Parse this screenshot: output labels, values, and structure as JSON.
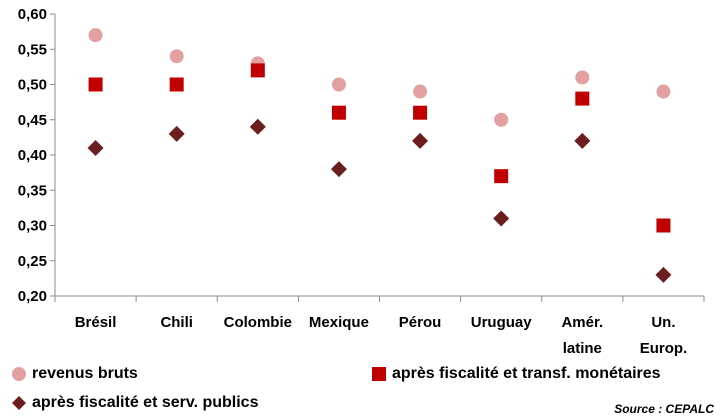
{
  "chart_data": {
    "type": "scatter",
    "categories": [
      [
        "Brésil"
      ],
      [
        "Chili"
      ],
      [
        "Colombie"
      ],
      [
        "Mexique"
      ],
      [
        "Pérou"
      ],
      [
        "Uruguay"
      ],
      [
        "Amér.",
        "latine"
      ],
      [
        "Un.",
        "Europ."
      ]
    ],
    "series": [
      {
        "name": "revenus bruts",
        "marker": "circle",
        "color": "#E3A0A0",
        "values": [
          0.57,
          0.54,
          0.53,
          0.5,
          0.49,
          0.45,
          0.51,
          0.49
        ]
      },
      {
        "name": "après fiscalité et transf. monétaires",
        "marker": "square",
        "color": "#C00000",
        "values": [
          0.5,
          0.5,
          0.52,
          0.46,
          0.46,
          0.37,
          0.48,
          0.3
        ]
      },
      {
        "name": "après fiscalité et serv. publics",
        "marker": "diamond",
        "color": "#6B1E1E",
        "values": [
          0.41,
          0.43,
          0.44,
          0.38,
          0.42,
          0.31,
          0.42,
          0.23
        ]
      }
    ],
    "ylim": [
      0.2,
      0.6
    ],
    "yticks": [
      "0,20",
      "0,25",
      "0,30",
      "0,35",
      "0,40",
      "0,45",
      "0,50",
      "0,55",
      "0,60"
    ],
    "legend_position": "bottom",
    "grid": false
  },
  "legend": {
    "item1": "revenus bruts",
    "item2": "après fiscalité et transf. monétaires",
    "item3": "après fiscalité et serv. publics"
  },
  "source": "Source : CEPALC"
}
